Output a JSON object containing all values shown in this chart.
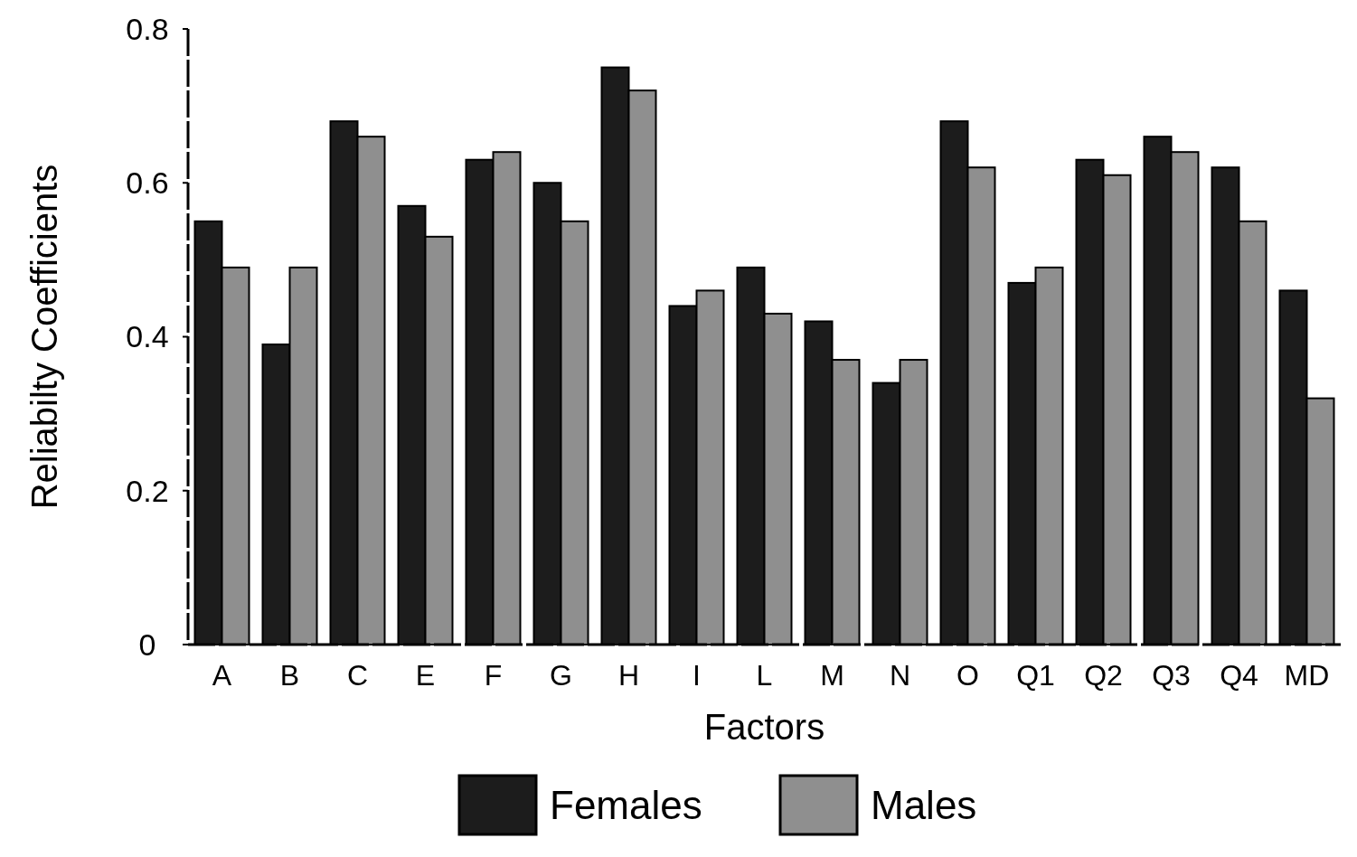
{
  "chart_data": {
    "type": "bar",
    "xlabel": "Factors",
    "ylabel": "Reliabilty Coefficients",
    "categories": [
      "A",
      "B",
      "C",
      "E",
      "F",
      "G",
      "H",
      "I",
      "L",
      "M",
      "N",
      "O",
      "Q1",
      "Q2",
      "Q3",
      "Q4",
      "MD"
    ],
    "series": [
      {
        "name": "Females",
        "color": "#1c1c1c",
        "values": [
          0.55,
          0.39,
          0.68,
          0.57,
          0.63,
          0.6,
          0.75,
          0.44,
          0.49,
          0.42,
          0.34,
          0.68,
          0.47,
          0.63,
          0.66,
          0.62,
          0.46
        ]
      },
      {
        "name": "Males",
        "color": "#8f8f8f",
        "values": [
          0.49,
          0.49,
          0.66,
          0.53,
          0.64,
          0.55,
          0.72,
          0.46,
          0.43,
          0.37,
          0.37,
          0.62,
          0.49,
          0.61,
          0.64,
          0.55,
          0.32
        ]
      }
    ],
    "ylim": [
      0,
      0.8
    ],
    "yticks": [
      0,
      0.2,
      0.4,
      0.6,
      0.8
    ],
    "grid": false,
    "legend": "bottom"
  }
}
